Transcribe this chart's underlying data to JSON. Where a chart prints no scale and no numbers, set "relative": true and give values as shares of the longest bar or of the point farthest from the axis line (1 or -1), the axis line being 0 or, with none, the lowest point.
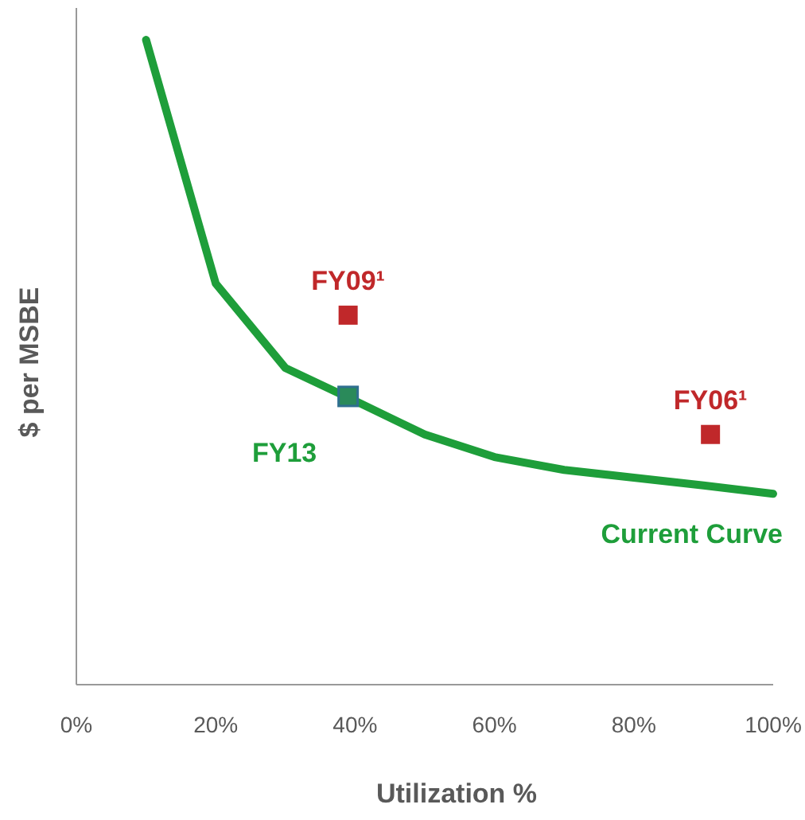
{
  "chart_data": {
    "type": "line",
    "xlabel": "Utilization %",
    "ylabel": "$ per MSBE",
    "relative": true,
    "xlim": [
      0,
      100
    ],
    "xticks": [
      {
        "value": 0,
        "label": "0%"
      },
      {
        "value": 20,
        "label": "20%"
      },
      {
        "value": 40,
        "label": "40%"
      },
      {
        "value": 60,
        "label": "60%"
      },
      {
        "value": 80,
        "label": "80%"
      },
      {
        "value": 100,
        "label": "100%"
      }
    ],
    "tick_labels": "x",
    "marker": "none",
    "line_style": "solid",
    "series": [
      {
        "name": "Current Curve",
        "color": "#1e9e3a",
        "x": [
          10,
          20,
          30,
          40,
          50,
          60,
          70,
          80,
          90,
          100
        ],
        "values": [
          1,
          0.622,
          0.491,
          0.44,
          0.388,
          0.353,
          0.333,
          0.321,
          0.309,
          0.296
        ]
      },
      {
        "name": "FY09¹",
        "type": "scatter",
        "color": "#c0282a",
        "marker": "square",
        "x": [
          39
        ],
        "values": [
          0.573
        ]
      },
      {
        "name": "FY06¹",
        "type": "scatter",
        "color": "#c0282a",
        "marker": "square",
        "x": [
          91
        ],
        "values": [
          0.388
        ]
      },
      {
        "name": "FY13",
        "type": "scatter",
        "color": "#2a8a5a",
        "marker": "square",
        "x": [
          39
        ],
        "values": [
          0.447
        ]
      }
    ]
  }
}
